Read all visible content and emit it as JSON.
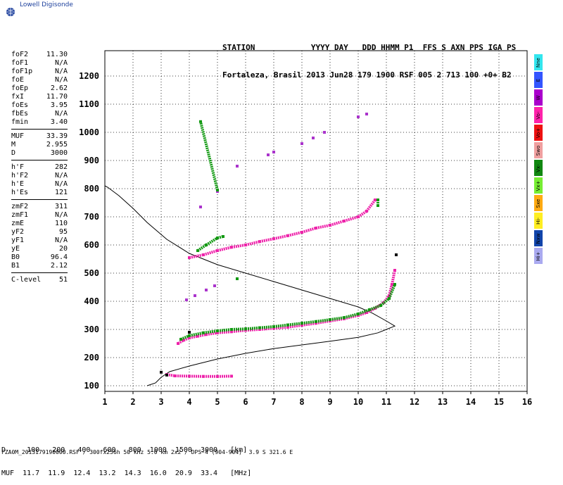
{
  "logo": {
    "text": "Lowell Digisonde"
  },
  "header": {
    "line1": "STATION            YYYY DAY   DDD HHMM P1  FFS S AXN PPS IGA PS",
    "line2": "Fortaleza, Brasil 2013 Jun28 179 1900 RSF 005 2 713 100 +0+ B2"
  },
  "params": {
    "group1": [
      {
        "k": "foF2",
        "v": "11.30"
      },
      {
        "k": "foF1",
        "v": "N/A"
      },
      {
        "k": "foF1p",
        "v": "N/A"
      },
      {
        "k": "foE",
        "v": "N/A"
      },
      {
        "k": "foEp",
        "v": "2.62"
      },
      {
        "k": "fxI",
        "v": "11.70"
      },
      {
        "k": "foEs",
        "v": "3.95"
      },
      {
        "k": "fbEs",
        "v": "N/A"
      },
      {
        "k": "fmin",
        "v": "3.40"
      }
    ],
    "group2": [
      {
        "k": "MUF",
        "v": "33.39"
      },
      {
        "k": "M",
        "v": "2.955"
      },
      {
        "k": "D",
        "v": "3000"
      }
    ],
    "group3": [
      {
        "k": "h'F",
        "v": "282"
      },
      {
        "k": "h'F2",
        "v": "N/A"
      },
      {
        "k": "h'E",
        "v": "N/A"
      },
      {
        "k": "h'Es",
        "v": "121"
      }
    ],
    "group4": [
      {
        "k": "zmF2",
        "v": "311"
      },
      {
        "k": "zmF1",
        "v": "N/A"
      },
      {
        "k": "zmE",
        "v": "110"
      },
      {
        "k": "yF2",
        "v": "95"
      },
      {
        "k": "yF1",
        "v": "N/A"
      },
      {
        "k": "yE",
        "v": "20"
      },
      {
        "k": "B0",
        "v": "96.4"
      },
      {
        "k": "B1",
        "v": "2.12"
      }
    ],
    "group5": [
      {
        "k": "C-level",
        "v": "51"
      }
    ]
  },
  "legend": [
    {
      "label": "Nne",
      "color": "#33e6ee"
    },
    {
      "label": "E",
      "color": "#3355ff"
    },
    {
      "label": "W",
      "color": "#aa00cc"
    },
    {
      "label": "Vo-",
      "color": "#ff22aa"
    },
    {
      "label": "Vo+",
      "color": "#ee1111"
    },
    {
      "label": "Swo",
      "color": "#f0a0a0"
    },
    {
      "label": "Vx-",
      "color": "#118811"
    },
    {
      "label": "Vx+",
      "color": "#77ee33"
    },
    {
      "label": "Sxe",
      "color": "#ffaa11"
    },
    {
      "label": "Hi-",
      "color": "#ffee22"
    },
    {
      "label": "Nxw",
      "color": "#1144aa"
    },
    {
      "label": "Hi+",
      "color": "#aaaaf0"
    }
  ],
  "footer": {
    "line1": "D     100   200   400   600   800  1000  1500  3000   [km]",
    "line2": "MUF  11.7  11.9  12.4  13.2  14.3  16.0  20.9  33.4   [MHz]",
    "line3": "FZA0M_2013179190000.RSF / 300fx256h 50 kHz 5.0 km 2x2 / DPS-4 (904-904)  3.9 S 321.6 E"
  },
  "chart_data": {
    "type": "scatter",
    "title": "",
    "xlabel": "",
    "ylabel": "",
    "xlim": [
      1,
      16
    ],
    "ylim": [
      80,
      1290
    ],
    "x_ticks": [
      1,
      2,
      3,
      4,
      5,
      6,
      7,
      8,
      9,
      10,
      11,
      12,
      13,
      14,
      15,
      16
    ],
    "y_ticks": [
      100,
      200,
      300,
      400,
      500,
      600,
      700,
      800,
      900,
      1000,
      1100,
      1200
    ],
    "grid": true,
    "colors": {
      "green": "#119911",
      "magenta": "#ee22aa",
      "purple": "#aa33cc",
      "black": "#000000"
    },
    "traces": [
      {
        "color": "magenta",
        "points": [
          [
            3.6,
            250
          ],
          [
            3.8,
            262
          ],
          [
            4.0,
            270
          ],
          [
            4.3,
            276
          ],
          [
            4.6,
            282
          ],
          [
            5.0,
            288
          ],
          [
            5.5,
            292
          ],
          [
            6.0,
            297
          ],
          [
            6.5,
            300
          ],
          [
            7.0,
            304
          ],
          [
            7.5,
            308
          ],
          [
            8.0,
            315
          ],
          [
            8.5,
            322
          ],
          [
            9.0,
            330
          ],
          [
            9.5,
            338
          ],
          [
            10.0,
            350
          ],
          [
            10.3,
            360
          ],
          [
            10.6,
            375
          ],
          [
            10.9,
            395
          ],
          [
            11.1,
            420
          ],
          [
            11.2,
            460
          ],
          [
            11.3,
            510
          ]
        ]
      },
      {
        "color": "green",
        "points": [
          [
            3.7,
            265
          ],
          [
            4.0,
            278
          ],
          [
            4.5,
            288
          ],
          [
            5.0,
            295
          ],
          [
            5.5,
            300
          ],
          [
            6.0,
            302
          ],
          [
            6.5,
            306
          ],
          [
            7.0,
            310
          ],
          [
            7.5,
            316
          ],
          [
            8.0,
            322
          ],
          [
            8.5,
            328
          ],
          [
            9.0,
            335
          ],
          [
            9.5,
            342
          ],
          [
            10.0,
            355
          ],
          [
            10.4,
            370
          ],
          [
            10.8,
            385
          ],
          [
            11.1,
            410
          ],
          [
            11.3,
            460
          ]
        ]
      },
      {
        "color": "magenta",
        "points": [
          [
            4.0,
            555
          ],
          [
            4.5,
            565
          ],
          [
            5.0,
            580
          ],
          [
            5.5,
            592
          ],
          [
            6.0,
            600
          ],
          [
            6.5,
            612
          ],
          [
            7.0,
            622
          ],
          [
            7.5,
            633
          ],
          [
            8.0,
            645
          ],
          [
            8.5,
            660
          ],
          [
            9.0,
            670
          ],
          [
            9.5,
            685
          ],
          [
            10.0,
            700
          ],
          [
            10.3,
            720
          ],
          [
            10.6,
            760
          ]
        ]
      },
      {
        "color": "green",
        "points": [
          [
            4.3,
            580
          ],
          [
            4.6,
            600
          ],
          [
            5.0,
            625
          ],
          [
            5.2,
            630
          ],
          [
            10.7,
            740
          ],
          [
            10.7,
            760
          ]
        ]
      },
      {
        "color": "purple",
        "points": [
          [
            3.9,
            405
          ],
          [
            4.2,
            420
          ],
          [
            4.6,
            440
          ],
          [
            4.9,
            455
          ],
          [
            4.4,
            735
          ],
          [
            5.0,
            790
          ],
          [
            5.7,
            880
          ],
          [
            6.8,
            920
          ],
          [
            7.0,
            930
          ],
          [
            8.0,
            960
          ],
          [
            8.4,
            980
          ],
          [
            8.8,
            1000
          ],
          [
            10.0,
            1055
          ],
          [
            10.3,
            1065
          ]
        ]
      },
      {
        "color": "green",
        "points": [
          [
            5.0,
            795
          ],
          [
            4.4,
            1038
          ],
          [
            5.7,
            480
          ]
        ]
      },
      {
        "color": "magenta",
        "points": [
          [
            3.2,
            140
          ],
          [
            3.5,
            135
          ],
          [
            4.0,
            134
          ],
          [
            4.5,
            133
          ],
          [
            5.0,
            133
          ],
          [
            5.5,
            134
          ]
        ]
      },
      {
        "color": "black",
        "points": [
          [
            3.0,
            148
          ],
          [
            3.2,
            138
          ],
          [
            4.0,
            290
          ],
          [
            11.35,
            565
          ]
        ]
      }
    ],
    "profile_curve": [
      [
        2.5,
        100
      ],
      [
        2.8,
        110
      ],
      [
        3.0,
        130
      ],
      [
        3.3,
        150
      ],
      [
        4.0,
        170
      ],
      [
        5.0,
        195
      ],
      [
        6.0,
        215
      ],
      [
        7.0,
        232
      ],
      [
        8.0,
        245
      ],
      [
        9.0,
        258
      ],
      [
        10.0,
        272
      ],
      [
        10.7,
        288
      ],
      [
        11.0,
        300
      ],
      [
        11.3,
        312
      ],
      [
        11.0,
        330
      ],
      [
        10.5,
        358
      ],
      [
        10.0,
        380
      ],
      [
        9.0,
        410
      ],
      [
        8.0,
        440
      ],
      [
        7.0,
        470
      ],
      [
        6.0,
        500
      ],
      [
        5.0,
        530
      ],
      [
        4.0,
        570
      ],
      [
        3.2,
        620
      ],
      [
        2.5,
        680
      ],
      [
        2.0,
        730
      ],
      [
        1.5,
        775
      ],
      [
        1.1,
        805
      ],
      [
        1.0,
        810
      ]
    ]
  }
}
